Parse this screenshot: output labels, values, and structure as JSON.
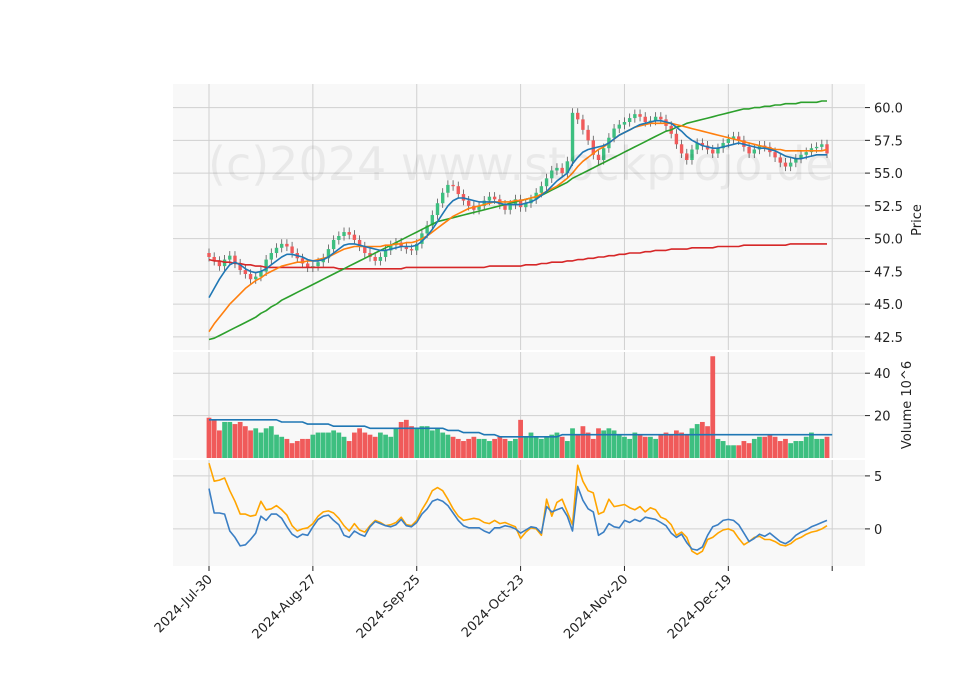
{
  "chart_data": {
    "type": "candlestick",
    "watermark": "(c)2024 www.stockprojo.de",
    "colors": {
      "up": "#3dbf80",
      "down": "#f05a5a",
      "ma_short": "#1f77b4",
      "ma_mid": "#ff7f0e",
      "ma_long": "#2ca02c",
      "ma_200": "#d62728",
      "volume_ma": "#1f77b4",
      "oscillator_a": "#3b7fc4",
      "oscillator_b": "#ffa500",
      "panel_bg": "#f8f8f8",
      "grid": "#d0d0d0"
    },
    "x_tick_labels": [
      "2024-Jul-30",
      "2024-Aug-27",
      "2024-Sep-25",
      "2024-Oct-23",
      "2024-Nov-20",
      "2024-Dec-19"
    ],
    "x_tick_index": [
      0,
      20,
      40,
      60,
      80,
      100
    ],
    "n_days": 120,
    "price_panel": {
      "ylabel": "Price",
      "yticks": [
        "42.5",
        "45.0",
        "47.5",
        "50.0",
        "52.5",
        "55.0",
        "57.5",
        "60.0"
      ],
      "ylim": [
        41.5,
        61.8
      ],
      "close": [
        48.6,
        48.3,
        47.9,
        48.4,
        48.7,
        48.1,
        47.6,
        47.3,
        46.9,
        47.1,
        47.5,
        48.4,
        48.9,
        49.3,
        49.6,
        49.4,
        48.9,
        48.5,
        48.1,
        47.8,
        47.9,
        48.2,
        48.5,
        49.2,
        49.9,
        50.2,
        50.5,
        50.3,
        49.9,
        49.4,
        48.9,
        48.6,
        48.3,
        48.6,
        49.1,
        49.5,
        49.7,
        49.4,
        49.2,
        49.1,
        49.6,
        50.4,
        51.0,
        51.8,
        52.7,
        53.5,
        54.1,
        54.0,
        53.4,
        52.9,
        52.5,
        52.2,
        52.5,
        52.9,
        53.2,
        53.0,
        52.6,
        52.2,
        52.6,
        53.0,
        52.4,
        52.7,
        53.0,
        53.5,
        54.0,
        54.6,
        55.2,
        55.4,
        55.0,
        55.9,
        59.6,
        59.1,
        58.3,
        57.5,
        56.4,
        56.0,
        56.9,
        57.7,
        58.4,
        58.7,
        58.9,
        59.2,
        59.5,
        59.3,
        58.9,
        59.0,
        59.3,
        59.1,
        58.6,
        58.0,
        57.2,
        56.5,
        56.0,
        56.8,
        57.3,
        57.1,
        56.8,
        56.5,
        56.9,
        57.3,
        57.6,
        57.8,
        57.5,
        57.0,
        56.5,
        56.8,
        57.1,
        57.0,
        56.6,
        56.2,
        55.8,
        55.5,
        55.8,
        56.1,
        56.4,
        56.6,
        56.9,
        57.0,
        57.2,
        56.5
      ],
      "volume": [
        19,
        18,
        13,
        17,
        17,
        16,
        17,
        15,
        13,
        14,
        12,
        14,
        15,
        11,
        10,
        9,
        7,
        8,
        9,
        9,
        11,
        12,
        12,
        12,
        13,
        12,
        10,
        8,
        12,
        14,
        12,
        11,
        10,
        12,
        11,
        10,
        14,
        17,
        18,
        15,
        14,
        15,
        15,
        13,
        14,
        12,
        11,
        10,
        9,
        8,
        9,
        10,
        9,
        9,
        8,
        9,
        10,
        9,
        8,
        9,
        18,
        10,
        12,
        10,
        9,
        10,
        11,
        12,
        10,
        8,
        14,
        11,
        15,
        12,
        9,
        14,
        13,
        14,
        13,
        11,
        10,
        9,
        12,
        11,
        10,
        10,
        9,
        11,
        12,
        11,
        13,
        12,
        11,
        14,
        16,
        17,
        15,
        48,
        9,
        8,
        6,
        6,
        6,
        8,
        7,
        9,
        10,
        10,
        11,
        10,
        8,
        9,
        7,
        8,
        8,
        10,
        12,
        9,
        9,
        10
      ],
      "ma_short": [
        45.5,
        46.2,
        46.9,
        47.5,
        48.0,
        48.2,
        48.0,
        47.7,
        47.5,
        47.4,
        47.5,
        47.7,
        48.0,
        48.3,
        48.6,
        48.8,
        48.8,
        48.7,
        48.6,
        48.4,
        48.3,
        48.3,
        48.4,
        48.6,
        48.9,
        49.2,
        49.5,
        49.6,
        49.6,
        49.5,
        49.4,
        49.3,
        49.2,
        49.1,
        49.1,
        49.2,
        49.3,
        49.4,
        49.4,
        49.4,
        49.5,
        49.8,
        50.2,
        50.7,
        51.3,
        51.9,
        52.5,
        52.9,
        53.1,
        53.1,
        53.0,
        52.9,
        52.8,
        52.8,
        52.8,
        52.8,
        52.7,
        52.6,
        52.6,
        52.6,
        52.6,
        52.7,
        52.8,
        53.0,
        53.3,
        53.6,
        54.0,
        54.4,
        54.7,
        55.0,
        55.7,
        56.2,
        56.6,
        56.8,
        56.9,
        57.0,
        57.1,
        57.3,
        57.6,
        57.9,
        58.1,
        58.3,
        58.5,
        58.7,
        58.8,
        58.9,
        59.0,
        59.0,
        58.9,
        58.8,
        58.5,
        58.2,
        57.8,
        57.5,
        57.3,
        57.1,
        57.0,
        56.9,
        56.9,
        57.0,
        57.1,
        57.2,
        57.3,
        57.2,
        57.1,
        57.0,
        56.9,
        56.9,
        56.8,
        56.7,
        56.5,
        56.3,
        56.2,
        56.1,
        56.1,
        56.2,
        56.3,
        56.4,
        56.4,
        56.4
      ],
      "ma_mid": [
        42.9,
        43.5,
        44.0,
        44.5,
        45.0,
        45.4,
        45.8,
        46.2,
        46.5,
        46.8,
        47.0,
        47.3,
        47.5,
        47.7,
        47.9,
        48.0,
        48.1,
        48.2,
        48.2,
        48.3,
        48.3,
        48.4,
        48.5,
        48.6,
        48.8,
        49.0,
        49.2,
        49.3,
        49.4,
        49.4,
        49.4,
        49.4,
        49.4,
        49.4,
        49.5,
        49.5,
        49.6,
        49.6,
        49.7,
        49.7,
        49.8,
        50.0,
        50.2,
        50.5,
        50.8,
        51.1,
        51.4,
        51.7,
        51.9,
        52.1,
        52.3,
        52.4,
        52.5,
        52.6,
        52.7,
        52.8,
        52.8,
        52.8,
        52.8,
        52.9,
        52.9,
        53.0,
        53.1,
        53.2,
        53.4,
        53.6,
        53.8,
        54.0,
        54.3,
        54.6,
        55.0,
        55.5,
        55.9,
        56.2,
        56.5,
        56.8,
        57.0,
        57.3,
        57.6,
        57.9,
        58.1,
        58.3,
        58.5,
        58.6,
        58.7,
        58.8,
        58.8,
        58.8,
        58.8,
        58.8,
        58.7,
        58.6,
        58.5,
        58.4,
        58.3,
        58.2,
        58.1,
        58.0,
        57.9,
        57.8,
        57.7,
        57.6,
        57.5,
        57.4,
        57.3,
        57.2,
        57.1,
        57.0,
        56.9,
        56.8,
        56.8,
        56.7,
        56.7,
        56.7,
        56.7,
        56.7,
        56.7,
        56.7,
        56.7,
        56.8
      ],
      "ma_long": [
        42.3,
        42.4,
        42.6,
        42.8,
        43.0,
        43.2,
        43.4,
        43.6,
        43.8,
        44.0,
        44.3,
        44.5,
        44.8,
        45.0,
        45.3,
        45.5,
        45.7,
        45.9,
        46.1,
        46.3,
        46.5,
        46.7,
        46.9,
        47.1,
        47.3,
        47.5,
        47.7,
        47.9,
        48.1,
        48.3,
        48.5,
        48.7,
        48.9,
        49.1,
        49.3,
        49.5,
        49.7,
        49.9,
        50.1,
        50.3,
        50.5,
        50.7,
        50.9,
        51.1,
        51.3,
        51.4,
        51.5,
        51.6,
        51.7,
        51.8,
        51.9,
        52.0,
        52.1,
        52.2,
        52.3,
        52.4,
        52.5,
        52.6,
        52.7,
        52.8,
        52.9,
        53.0,
        53.1,
        53.2,
        53.3,
        53.5,
        53.7,
        53.9,
        54.1,
        54.3,
        54.6,
        54.8,
        55.0,
        55.2,
        55.4,
        55.6,
        55.8,
        56.0,
        56.2,
        56.4,
        56.6,
        56.8,
        57.0,
        57.2,
        57.4,
        57.6,
        57.8,
        58.0,
        58.2,
        58.3,
        58.5,
        58.6,
        58.8,
        58.9,
        59.0,
        59.1,
        59.2,
        59.3,
        59.4,
        59.5,
        59.6,
        59.7,
        59.8,
        59.9,
        59.9,
        60.0,
        60.0,
        60.1,
        60.1,
        60.2,
        60.2,
        60.3,
        60.3,
        60.3,
        60.4,
        60.4,
        60.4,
        60.4,
        60.5,
        60.5
      ],
      "ma_200": [
        48.4,
        48.3,
        48.3,
        48.2,
        48.2,
        48.1,
        48.1,
        48.0,
        48.0,
        47.9,
        47.9,
        47.8,
        47.8,
        47.8,
        47.8,
        47.8,
        47.8,
        47.8,
        47.8,
        47.8,
        47.8,
        47.8,
        47.8,
        47.8,
        47.8,
        47.7,
        47.7,
        47.7,
        47.7,
        47.7,
        47.7,
        47.7,
        47.7,
        47.7,
        47.7,
        47.7,
        47.7,
        47.7,
        47.8,
        47.8,
        47.8,
        47.8,
        47.8,
        47.8,
        47.8,
        47.8,
        47.8,
        47.8,
        47.8,
        47.8,
        47.8,
        47.8,
        47.8,
        47.8,
        47.9,
        47.9,
        47.9,
        47.9,
        47.9,
        47.9,
        47.9,
        48.0,
        48.0,
        48.0,
        48.1,
        48.1,
        48.2,
        48.2,
        48.2,
        48.3,
        48.3,
        48.4,
        48.4,
        48.5,
        48.5,
        48.6,
        48.6,
        48.7,
        48.7,
        48.8,
        48.8,
        48.9,
        48.9,
        48.9,
        49.0,
        49.0,
        49.1,
        49.1,
        49.1,
        49.2,
        49.2,
        49.2,
        49.2,
        49.3,
        49.3,
        49.3,
        49.3,
        49.3,
        49.4,
        49.4,
        49.4,
        49.4,
        49.4,
        49.5,
        49.5,
        49.5,
        49.5,
        49.5,
        49.5,
        49.5,
        49.5,
        49.5,
        49.6,
        49.6,
        49.6,
        49.6,
        49.6,
        49.6,
        49.6,
        49.6
      ]
    },
    "volume_panel": {
      "ylabel": "Volume  10^6",
      "yticks": [
        "20",
        "40"
      ],
      "ylim": [
        0,
        50
      ],
      "volume_ma": [
        18,
        18,
        18,
        18,
        18,
        18,
        18,
        18,
        18,
        18,
        18,
        18,
        18,
        18,
        17,
        17,
        17,
        17,
        17,
        16,
        16,
        16,
        16,
        16,
        15,
        15,
        15,
        15,
        15,
        15,
        15,
        14,
        14,
        14,
        14,
        14,
        14,
        14,
        14,
        14,
        14,
        14,
        14,
        14,
        14,
        14,
        13,
        13,
        13,
        12,
        12,
        12,
        12,
        11,
        11,
        11,
        10,
        10,
        10,
        10,
        10,
        10,
        10,
        10,
        10,
        10,
        10,
        10,
        11,
        11,
        11,
        11,
        11,
        11,
        11,
        11,
        11,
        11,
        11,
        11,
        11,
        11,
        11,
        11,
        11,
        11,
        11,
        11,
        11,
        11,
        11,
        11,
        11,
        11,
        11,
        11,
        11,
        11,
        11,
        11,
        11,
        11,
        11,
        11,
        11,
        11,
        11,
        11,
        11,
        11,
        11,
        11,
        11,
        11,
        11,
        11,
        11,
        11,
        11,
        11,
        11
      ]
    },
    "oscillator_panel": {
      "yticks": [
        "-0",
        "5",
        "0"
      ],
      "yticks_display": [
        "0",
        "5"
      ],
      "ylim": [
        -3.5,
        6.5
      ],
      "line_a": [
        3.8,
        1.5,
        1.5,
        1.4,
        -0.2,
        -0.8,
        -1.6,
        -1.5,
        -1.0,
        -0.4,
        1.2,
        0.8,
        1.4,
        1.4,
        1.0,
        0.2,
        -0.5,
        -0.8,
        -0.5,
        -0.6,
        0.2,
        0.9,
        1.2,
        1.3,
        0.8,
        0.4,
        -0.6,
        -0.8,
        -0.2,
        -0.5,
        -0.7,
        0.2,
        0.7,
        0.5,
        0.3,
        0.2,
        0.4,
        0.9,
        0.3,
        0.2,
        0.6,
        1.4,
        1.9,
        2.6,
        2.8,
        2.6,
        2.2,
        1.5,
        0.8,
        0.3,
        0.1,
        0.1,
        0.1,
        -0.2,
        -0.4,
        0.1,
        0.1,
        0.3,
        0.2,
        0.0,
        -0.4,
        -0.1,
        0.2,
        0.1,
        -0.4,
        2.1,
        1.6,
        1.8,
        2.0,
        1.2,
        -0.2,
        4.0,
        2.7,
        1.9,
        1.6,
        -0.6,
        -0.3,
        0.5,
        0.2,
        0.1,
        0.8,
        0.6,
        0.9,
        0.7,
        1.1,
        1.0,
        0.9,
        0.6,
        0.3,
        -0.4,
        -0.8,
        -0.5,
        -1.3,
        -1.9,
        -2.0,
        -1.7,
        -0.6,
        0.2,
        0.4,
        0.8,
        0.9,
        0.8,
        0.4,
        -0.4,
        -1.2,
        -0.9,
        -0.5,
        -0.7,
        -0.4,
        -0.8,
        -1.2,
        -1.4,
        -1.1,
        -0.6,
        -0.3,
        -0.1,
        0.2,
        0.4,
        0.6,
        0.8
      ],
      "line_b": [
        6.2,
        4.5,
        4.6,
        4.8,
        3.6,
        2.6,
        1.4,
        1.4,
        1.2,
        1.3,
        2.6,
        1.8,
        1.9,
        2.2,
        1.8,
        1.3,
        0.3,
        -0.2,
        0.0,
        0.1,
        0.5,
        1.2,
        1.6,
        1.7,
        1.5,
        1.0,
        0.3,
        -0.2,
        0.5,
        -0.1,
        -0.3,
        0.3,
        0.8,
        0.6,
        0.3,
        0.4,
        0.6,
        1.1,
        0.4,
        0.3,
        0.8,
        1.8,
        2.6,
        3.6,
        3.9,
        3.6,
        2.8,
        1.9,
        1.2,
        0.8,
        0.9,
        1.0,
        0.9,
        0.6,
        0.5,
        0.8,
        0.5,
        0.6,
        0.4,
        0.2,
        -0.9,
        -0.3,
        0.1,
        0.0,
        -0.6,
        2.8,
        1.2,
        2.5,
        2.8,
        1.6,
        0.4,
        6.0,
        4.5,
        3.6,
        3.4,
        1.4,
        1.6,
        2.8,
        2.1,
        2.2,
        2.3,
        2.0,
        1.8,
        2.1,
        1.6,
        2.0,
        1.8,
        1.1,
        0.9,
        0.4,
        -0.6,
        -0.3,
        -0.8,
        -2.1,
        -2.4,
        -2.1,
        -1.0,
        -0.8,
        -0.4,
        -0.1,
        0.0,
        -0.2,
        -0.9,
        -1.5,
        -1.2,
        -0.8,
        -0.7,
        -1.0,
        -1.0,
        -1.2,
        -1.5,
        -1.6,
        -1.4,
        -1.0,
        -0.8,
        -0.5,
        -0.3,
        -0.2,
        0.0,
        0.3
      ]
    }
  }
}
